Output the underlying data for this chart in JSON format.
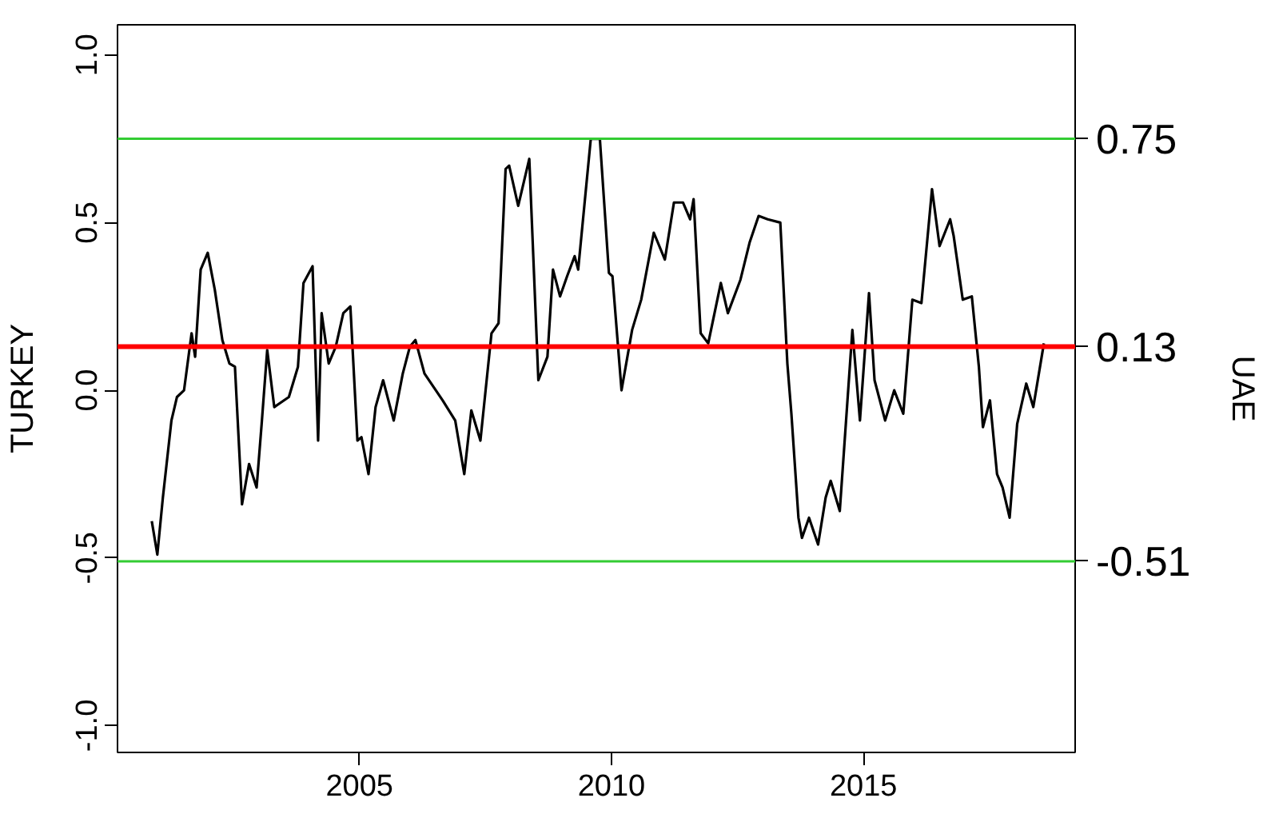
{
  "chart_data": {
    "type": "line",
    "ylabel": "TURKEY",
    "y2label": "UAE",
    "x": [
      2000.88,
      2000.99,
      2001.1,
      2001.27,
      2001.38,
      2001.52,
      2001.67,
      2001.74,
      2001.85,
      2001.99,
      2002.13,
      2002.28,
      2002.42,
      2002.53,
      2002.67,
      2002.81,
      2002.96,
      2003.06,
      2003.17,
      2003.31,
      2003.6,
      2003.78,
      2003.89,
      2004.07,
      2004.18,
      2004.25,
      2004.39,
      2004.53,
      2004.68,
      2004.82,
      2004.96,
      2005.04,
      2005.18,
      2005.32,
      2005.47,
      2005.68,
      2005.86,
      2006.0,
      2006.11,
      2006.29,
      2006.65,
      2006.9,
      2007.08,
      2007.22,
      2007.4,
      2007.62,
      2007.76,
      2007.9,
      2007.97,
      2008.15,
      2008.37,
      2008.55,
      2008.73,
      2008.84,
      2008.98,
      2009.12,
      2009.27,
      2009.34,
      2009.59,
      2009.77,
      2009.95,
      2010.02,
      2010.2,
      2010.41,
      2010.59,
      2010.84,
      2011.06,
      2011.24,
      2011.42,
      2011.56,
      2011.63,
      2011.77,
      2011.92,
      2012.17,
      2012.31,
      2012.56,
      2012.74,
      2012.92,
      2013.1,
      2013.35,
      2013.49,
      2013.57,
      2013.71,
      2013.78,
      2013.92,
      2014.1,
      2014.25,
      2014.35,
      2014.53,
      2014.78,
      2014.93,
      2015.11,
      2015.22,
      2015.43,
      2015.61,
      2015.79,
      2015.97,
      2016.15,
      2016.36,
      2016.51,
      2016.72,
      2016.79,
      2016.97,
      2017.15,
      2017.29,
      2017.37,
      2017.51,
      2017.65,
      2017.76,
      2017.9,
      2018.05,
      2018.23,
      2018.37,
      2018.58
    ],
    "series": [
      {
        "color": "#000000",
        "values": [
          -0.39,
          -0.49,
          -0.32,
          -0.09,
          -0.02,
          0.0,
          0.17,
          0.1,
          0.36,
          0.41,
          0.3,
          0.15,
          0.08,
          0.07,
          -0.34,
          -0.22,
          -0.29,
          -0.1,
          0.12,
          -0.05,
          -0.02,
          0.07,
          0.32,
          0.37,
          -0.15,
          0.23,
          0.08,
          0.13,
          0.23,
          0.25,
          -0.15,
          -0.14,
          -0.25,
          -0.05,
          0.03,
          -0.09,
          0.05,
          0.13,
          0.15,
          0.05,
          -0.03,
          -0.09,
          -0.25,
          -0.06,
          -0.15,
          0.17,
          0.2,
          0.66,
          0.67,
          0.55,
          0.69,
          0.03,
          0.1,
          0.36,
          0.28,
          0.34,
          0.4,
          0.36,
          0.75,
          0.75,
          0.35,
          0.34,
          0.0,
          0.18,
          0.27,
          0.47,
          0.39,
          0.56,
          0.56,
          0.51,
          0.57,
          0.17,
          0.14,
          0.32,
          0.23,
          0.33,
          0.44,
          0.52,
          0.51,
          0.5,
          0.08,
          -0.07,
          -0.38,
          -0.44,
          -0.38,
          -0.46,
          -0.32,
          -0.27,
          -0.36,
          0.18,
          -0.09,
          0.29,
          0.03,
          -0.09,
          0.0,
          -0.07,
          0.27,
          0.26,
          0.6,
          0.43,
          0.51,
          0.46,
          0.27,
          0.28,
          0.07,
          -0.11,
          -0.03,
          -0.25,
          -0.29,
          -0.38,
          -0.1,
          0.02,
          -0.05,
          0.14
        ]
      }
    ],
    "xlim": [
      2000.2,
      2019.2
    ],
    "ylim": [
      -1.08,
      1.09
    ],
    "y2lim": [
      -1.08,
      1.09
    ],
    "xticks": [
      2005,
      2010,
      2015
    ],
    "yticks": [
      {
        "value": -1,
        "label": "-1.0"
      },
      {
        "value": -0.5,
        "label": "-0.5"
      },
      {
        "value": 0,
        "label": "0.0"
      },
      {
        "value": 0.5,
        "label": "0.5"
      },
      {
        "value": 1,
        "label": "1.0"
      }
    ],
    "y2ticks": [
      {
        "value": 0.75,
        "label": "0.75"
      },
      {
        "value": 0.13,
        "label": "0.13"
      },
      {
        "value": -0.51,
        "label": "-0.51"
      }
    ],
    "ref_lines": [
      {
        "axis": "y",
        "value": 0.75,
        "color": "#33cc33"
      },
      {
        "axis": "y",
        "value": -0.51,
        "color": "#33cc33"
      },
      {
        "axis": "y",
        "value": 0.13,
        "color": "#ff0000"
      }
    ],
    "grid": false,
    "line_style": "solid"
  }
}
